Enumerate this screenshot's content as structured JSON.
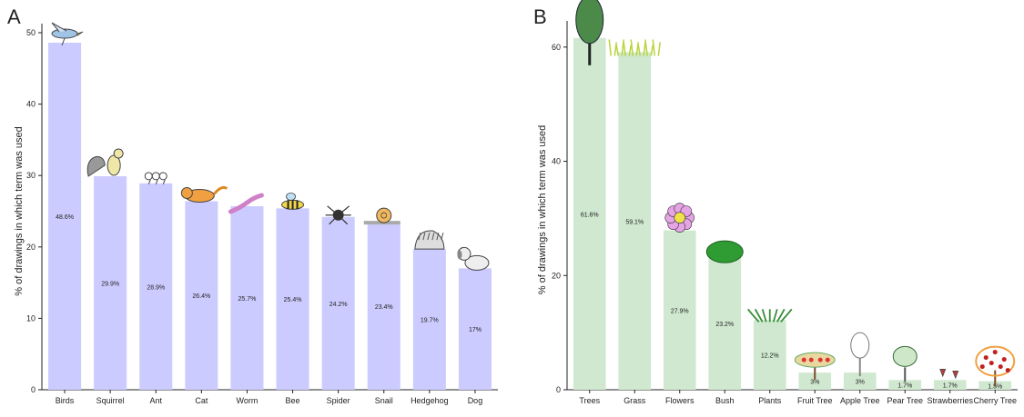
{
  "chart_data": [
    {
      "panel": "A",
      "type": "bar",
      "categories": [
        "Birds",
        "Squirrel",
        "Ant",
        "Cat",
        "Worm",
        "Bee",
        "Spider",
        "Snail",
        "Hedgehog",
        "Dog"
      ],
      "values": [
        48.6,
        29.9,
        28.9,
        26.4,
        25.7,
        25.4,
        24.2,
        23.4,
        19.7,
        17
      ],
      "labels": [
        "48.6%",
        "29.9%",
        "28.9%",
        "26.4%",
        "25.7%",
        "25.4%",
        "24.2%",
        "23.4%",
        "19.7%",
        "17%"
      ],
      "yticks": [
        0,
        10,
        20,
        30,
        40,
        50
      ],
      "ylim": [
        0,
        50
      ],
      "ylabel": "% of drawings in which term was used",
      "xlabel": "",
      "bar_color": "#cccbff",
      "icons": [
        "bird-icon",
        "squirrel-icon",
        "ant-icon",
        "cat-icon",
        "worm-icon",
        "bee-icon",
        "spider-icon",
        "snail-icon",
        "hedgehog-icon",
        "dog-icon"
      ],
      "grid": false
    },
    {
      "panel": "B",
      "type": "bar",
      "categories": [
        "Trees",
        "Grass",
        "Flowers",
        "Bush",
        "Plants",
        "Fruit Tree",
        "Apple Tree",
        "Pear Tree",
        "Strawberries",
        "Cherry Tree"
      ],
      "values": [
        61.6,
        59.1,
        27.9,
        23.2,
        12.2,
        3,
        3,
        1.7,
        1.7,
        1.5
      ],
      "labels": [
        "61.6%",
        "59.1%",
        "27.9%",
        "23.2%",
        "12.2%",
        "3%",
        "3%",
        "1.7%",
        "1.7%",
        "1.5%"
      ],
      "yticks": [
        0,
        20,
        40,
        60
      ],
      "ylim": [
        0,
        63
      ],
      "ylabel": "% of drawings in which term was used",
      "xlabel": "",
      "bar_color": "#cfe8cf",
      "icons": [
        "tree-icon",
        "grass-icon",
        "flower-icon",
        "bush-icon",
        "plants-icon",
        "fruit-tree-icon",
        "apple-tree-icon",
        "pear-tree-icon",
        "strawberries-icon",
        "cherry-tree-icon"
      ],
      "grid": false
    }
  ]
}
